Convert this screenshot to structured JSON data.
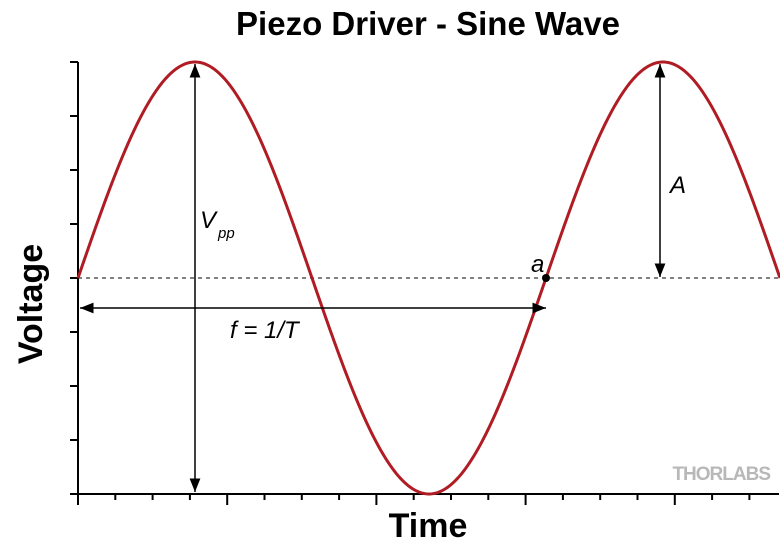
{
  "title": "Piezo Driver - Sine Wave",
  "x_label": "Time",
  "y_label": "Voltage",
  "annotations": {
    "vpp": {
      "main": "V",
      "sub": "pp"
    },
    "amplitude": "A",
    "point": "a",
    "frequency": "f = 1/T"
  },
  "logo": "THORLABS"
}
